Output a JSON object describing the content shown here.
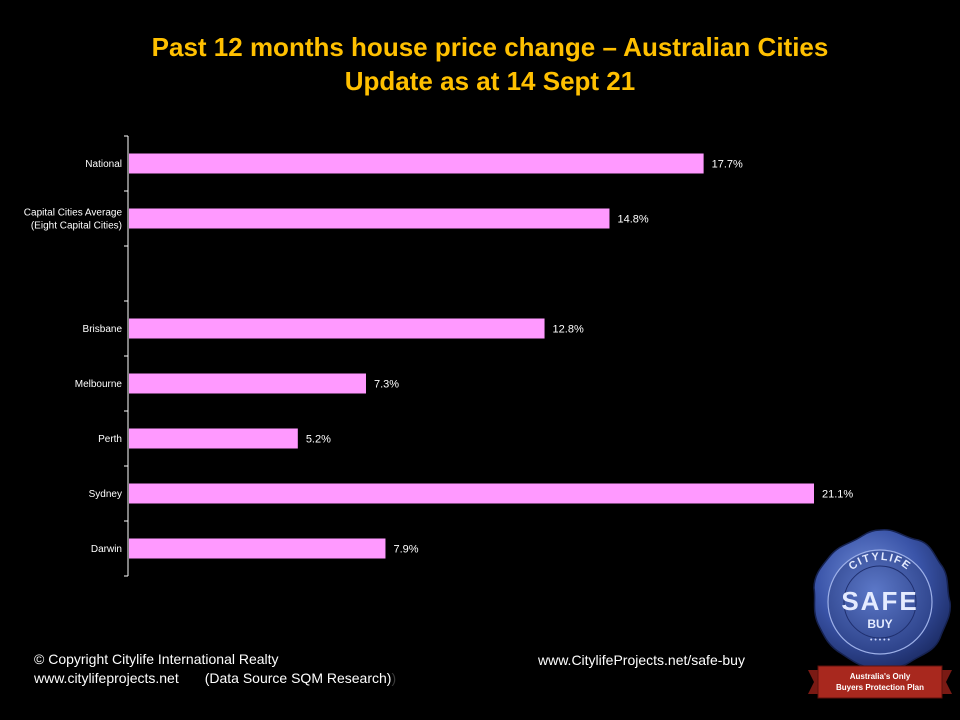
{
  "title": {
    "line1": "Past 12 months house price change – Australian Cities",
    "line2": "Update as at 14 Sept 21"
  },
  "colors": {
    "background": "#000000",
    "title": "#ffc000",
    "bar": "#ff99ff",
    "text": "#ffffff",
    "axis": "#ffffff"
  },
  "chart_data": {
    "type": "bar",
    "orientation": "horizontal",
    "categories": [
      [
        "National"
      ],
      [
        "Capital Cities Average",
        "(Eight Capital Cities)"
      ],
      [
        ""
      ],
      [
        "Brisbane"
      ],
      [
        "Melbourne"
      ],
      [
        "Perth"
      ],
      [
        "Sydney"
      ],
      [
        "Darwin"
      ]
    ],
    "values": [
      17.7,
      14.8,
      null,
      12.8,
      7.3,
      5.2,
      21.1,
      7.9
    ],
    "value_labels": [
      "17.7%",
      "14.8%",
      "",
      "12.8%",
      "7.3%",
      "5.2%",
      "21.1%",
      "7.9%"
    ],
    "xlim": [
      0,
      21.1
    ],
    "grid": false,
    "legend": "none"
  },
  "footer": {
    "copyright": "© Copyright Citylife International  Realty",
    "website": "www.citylifeprojects.net",
    "source": "(Data Source SQM Research)",
    "source_trail": ")",
    "safe_buy_url": "www.CitylifeProjects.net/safe-buy"
  },
  "seal": {
    "brand_text": "CITYLIFE",
    "main_text": "SAFE",
    "sub_text": "BUY",
    "dots": "• • • • •",
    "ribbon_line1": "Australia's Only",
    "ribbon_line2": "Buyers Protection Plan"
  }
}
